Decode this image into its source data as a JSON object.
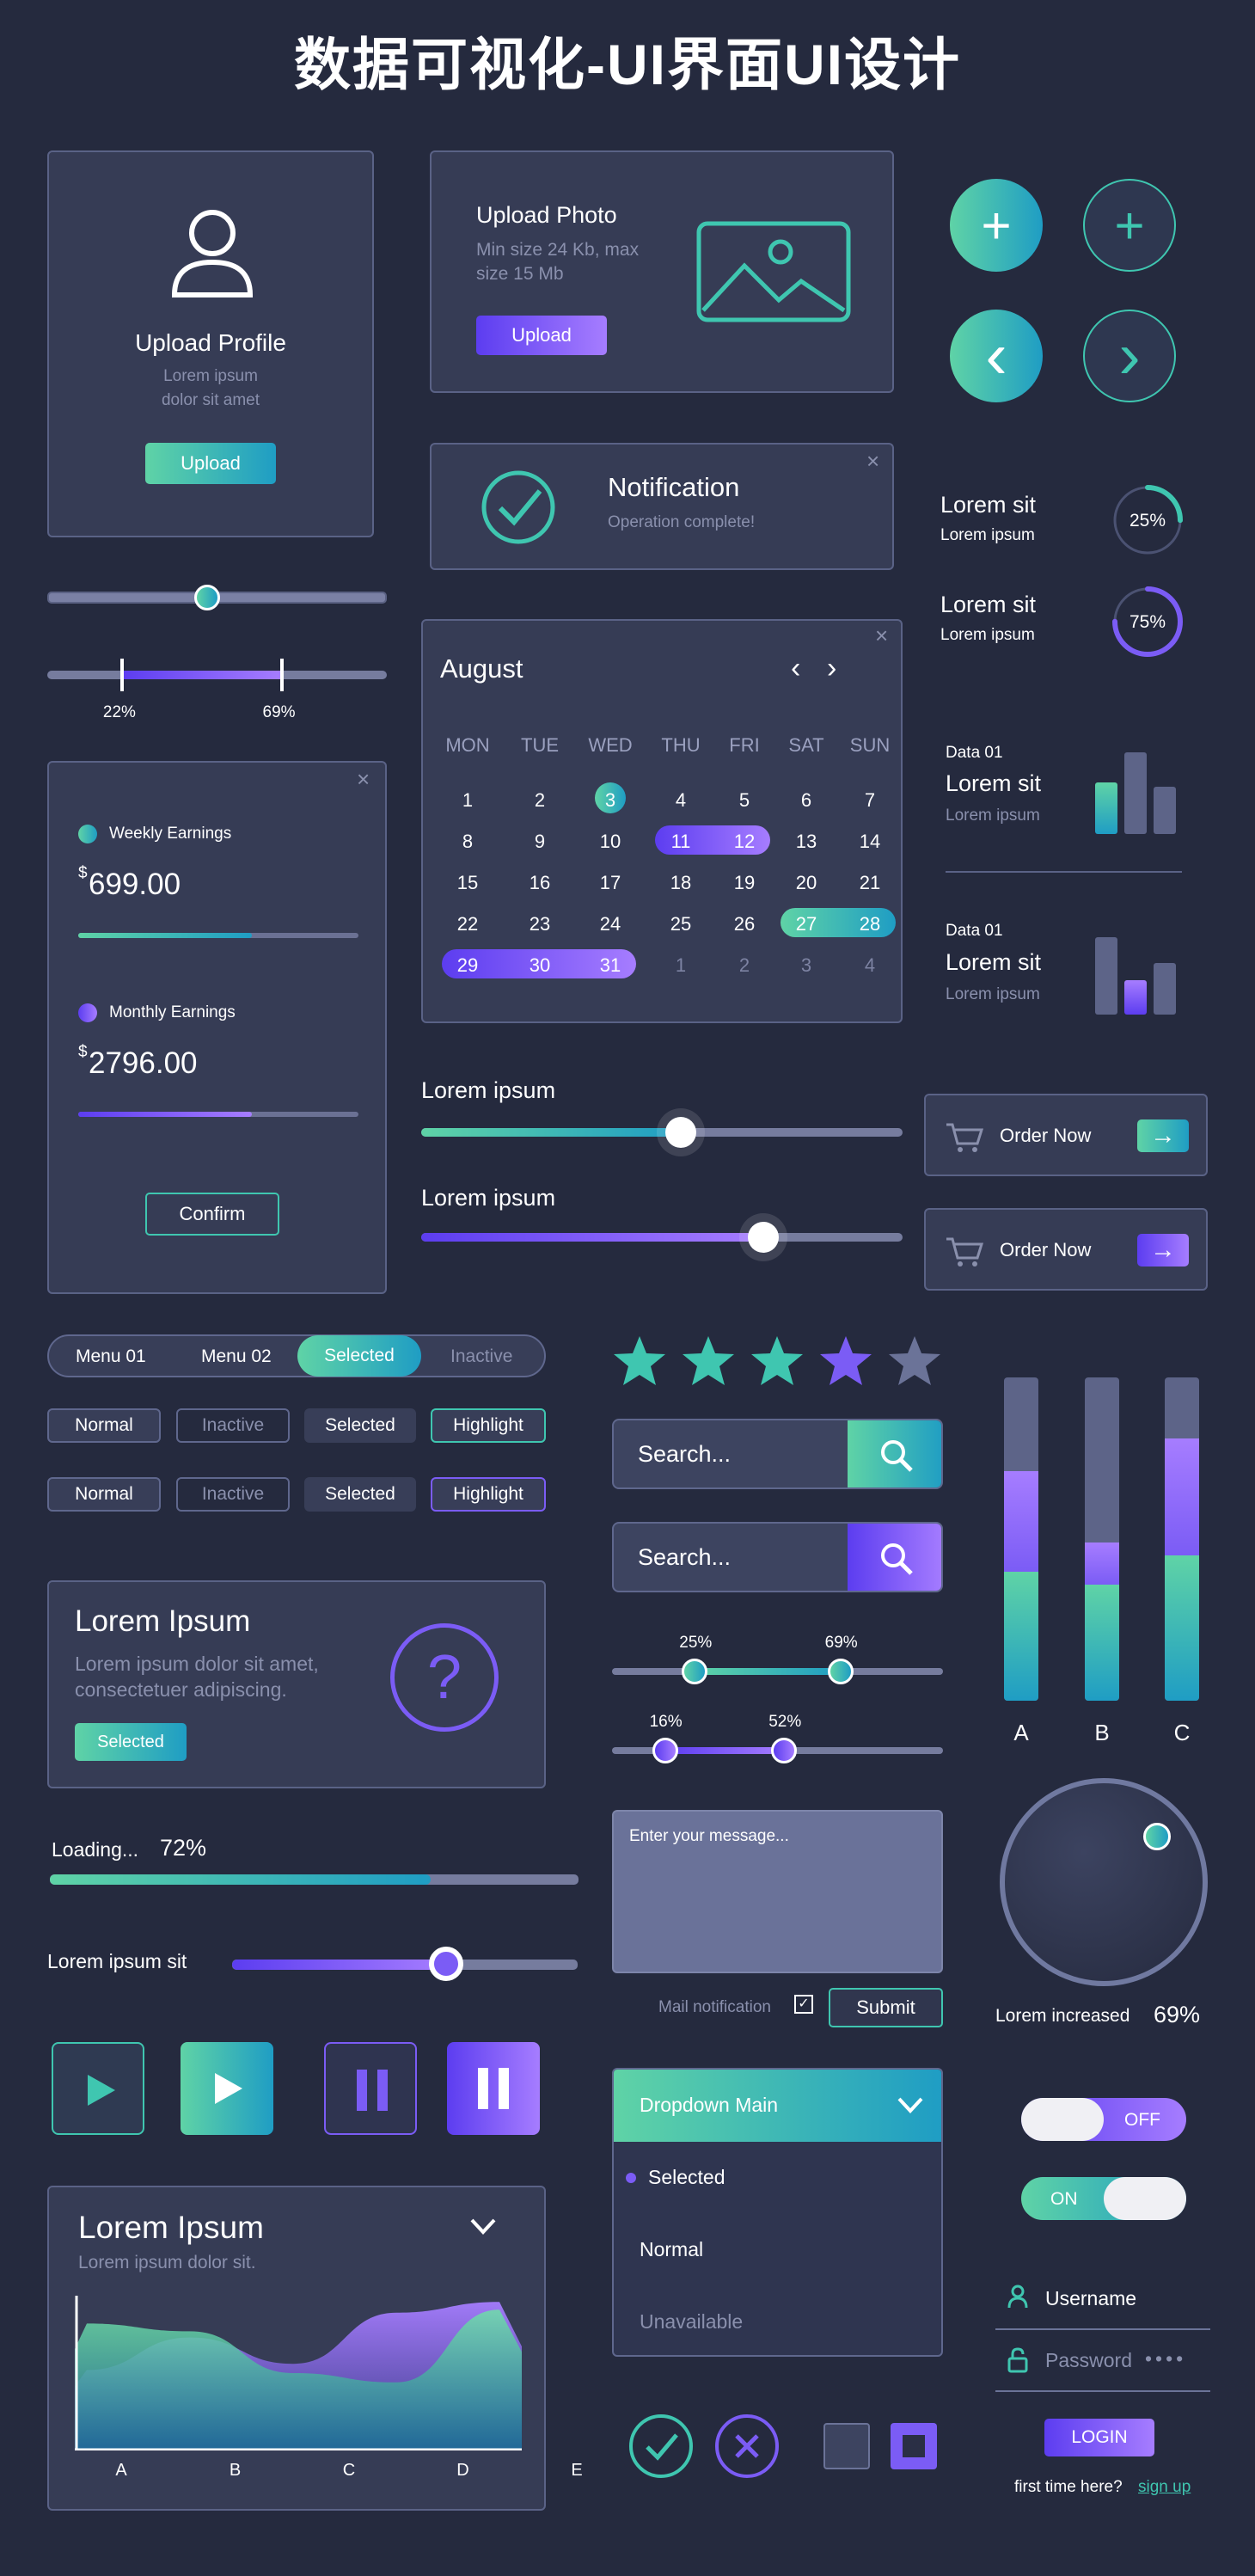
{
  "page_title": "数据可视化-UI界面UI设计",
  "upload_profile": {
    "title": "Upload Profile",
    "line1": "Lorem ipsum",
    "line2": "dolor sit amet",
    "button": "Upload"
  },
  "upload_photo": {
    "title": "Upload Photo",
    "line1": "Min size 24 Kb, max",
    "line2": "size 15 Mb",
    "button": "Upload"
  },
  "fab_buttons": {
    "plus": "+",
    "prev": "‹",
    "next": "›"
  },
  "notification": {
    "title": "Notification",
    "subtitle": "Operation complete!",
    "close": "×"
  },
  "progress_rings": [
    {
      "title": "Lorem sit",
      "sub": "Lorem ipsum",
      "value": 25,
      "label": "25%"
    },
    {
      "title": "Lorem sit",
      "sub": "Lorem ipsum",
      "value": 75,
      "label": "75%"
    }
  ],
  "sliders_top": {
    "single_value": 0.47,
    "range_low": 22,
    "range_high": 69,
    "low_label": "22%",
    "high_label": "69%"
  },
  "calendar": {
    "month": "August",
    "days": [
      "MON",
      "TUE",
      "WED",
      "THU",
      "FRI",
      "SAT",
      "SUN"
    ],
    "weeks": [
      [
        "1",
        "2",
        "3",
        "4",
        "5",
        "6",
        "7"
      ],
      [
        "8",
        "9",
        "10",
        "11",
        "12",
        "13",
        "14"
      ],
      [
        "15",
        "16",
        "17",
        "18",
        "19",
        "20",
        "21"
      ],
      [
        "22",
        "23",
        "24",
        "25",
        "26",
        "27",
        "28"
      ],
      [
        "29",
        "30",
        "31",
        "1",
        "2",
        "3",
        "4"
      ]
    ],
    "close": "×"
  },
  "mini_bars": [
    {
      "label": "Data 01",
      "title": "Lorem sit",
      "sub": "Lorem ipsum",
      "values": [
        0.6,
        0.95,
        0.55
      ]
    },
    {
      "label": "Data 01",
      "title": "Lorem sit",
      "sub": "Lorem ipsum",
      "values": [
        0.9,
        0.4,
        0.6
      ]
    }
  ],
  "earnings": {
    "weekly_label": "Weekly Earnings",
    "weekly_currency": "$",
    "weekly_value": "699.00",
    "weekly_progress": 0.62,
    "monthly_label": "Monthly Earnings",
    "monthly_currency": "$",
    "monthly_value": "2796.00",
    "monthly_progress": 0.62,
    "confirm": "Confirm",
    "close": "×"
  },
  "lorem_sliders": [
    {
      "label": "Lorem ipsum",
      "value": 0.54
    },
    {
      "label": "Lorem ipsum",
      "value": 0.71
    }
  ],
  "order_buttons": [
    {
      "label": "Order Now"
    },
    {
      "label": "Order Now"
    }
  ],
  "menu": {
    "items": [
      "Menu 01",
      "Menu 02",
      "Selected",
      "Inactive"
    ]
  },
  "button_rows": [
    [
      "Normal",
      "Inactive",
      "Selected",
      "Highlight"
    ],
    [
      "Normal",
      "Inactive",
      "Selected",
      "Highlight"
    ]
  ],
  "rating": {
    "stars": 4,
    "total": 5
  },
  "search": [
    {
      "placeholder": "Search..."
    },
    {
      "placeholder": "Search..."
    }
  ],
  "vertical_bars": {
    "categories": [
      "A",
      "B",
      "C"
    ],
    "segments": [
      {
        "teal": 0.4,
        "purple": 0.31
      },
      {
        "teal": 0.36,
        "purple": 0.13
      },
      {
        "teal": 0.45,
        "purple": 0.36
      }
    ]
  },
  "info_card": {
    "title": "Lorem Ipsum",
    "line1": "Lorem ipsum dolor sit amet,",
    "line2": "consectetuer adipiscing.",
    "button": "Selected",
    "icon": "?"
  },
  "range_sliders": [
    {
      "low": 25,
      "high": 69,
      "low_label": "25%",
      "high_label": "69%"
    },
    {
      "low": 16,
      "high": 52,
      "low_label": "16%",
      "high_label": "52%"
    }
  ],
  "loading": {
    "label": "Loading...",
    "value": 72,
    "value_label": "72%"
  },
  "lorem_slider_bottom": {
    "label": "Lorem ipsum sit",
    "value": 0.62
  },
  "message": {
    "placeholder": "Enter your message...",
    "mail_label": "Mail notification",
    "checkbox": "✓",
    "submit": "Submit"
  },
  "dial": {
    "label": "Lorem increased",
    "value_label": "69%"
  },
  "dropdown": {
    "title": "Dropdown Main",
    "options": [
      "Selected",
      "Normal",
      "Unavailable"
    ]
  },
  "toggles": [
    {
      "label": "OFF"
    },
    {
      "label": "ON"
    }
  ],
  "area_chart": {
    "title": "Lorem Ipsum",
    "subtitle": "Lorem ipsum dolor sit.",
    "chart_data": {
      "type": "area",
      "categories": [
        "A",
        "B",
        "C",
        "D",
        "E"
      ],
      "series": [
        {
          "values": [
            0.52,
            0.73,
            0.56,
            0.89,
            0.96
          ]
        },
        {
          "values": [
            0.82,
            0.77,
            0.5,
            0.44,
            0.91
          ]
        }
      ],
      "title": "",
      "xlabel": "",
      "ylabel": "",
      "grid": false
    }
  },
  "login": {
    "username": "Username",
    "password": "Password",
    "password_dots": "••••",
    "button": "LOGIN",
    "prompt": "first time here?",
    "signup": "sign up"
  },
  "colors": {
    "bg": "#252a3e",
    "panel": "#363c55",
    "teal": "#3fc6b0",
    "purple": "#7b5cf5"
  }
}
